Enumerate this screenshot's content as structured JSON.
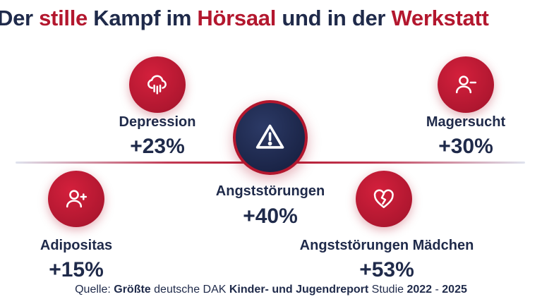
{
  "title": {
    "part1": "Der ",
    "highlight1": "stille",
    "part2": " Kampf im ",
    "highlight2": "Hörsaal",
    "part3": " und in der ",
    "highlight3": "Werkstatt"
  },
  "stats": {
    "depression": {
      "label": "Depression",
      "value": "+23%",
      "icon": "cloud-rain-icon"
    },
    "magersucht": {
      "label": "Magersucht",
      "value": "+30%",
      "icon": "user-minus-icon"
    },
    "angststoerungen": {
      "label": "Angststörungen",
      "value": "+40%",
      "icon": "warning-triangle-icon"
    },
    "adipositas": {
      "label": "Adipositas",
      "value": "+15%",
      "icon": "user-plus-icon"
    },
    "angst_maedchen": {
      "label": "Angststörungen Mädchen",
      "value": "+53%",
      "icon": "broken-heart-icon"
    }
  },
  "source": {
    "prefix": "Quelle: ",
    "s1": "Größte",
    "s2": " deutsche DAK ",
    "s3": "Kinder- und Jugendreport",
    "s4": " Studie ",
    "s5": "2022",
    "s6": " - ",
    "s7": "2025"
  },
  "colors": {
    "accent_red": "#b3172e",
    "navy": "#1f2a4a"
  }
}
